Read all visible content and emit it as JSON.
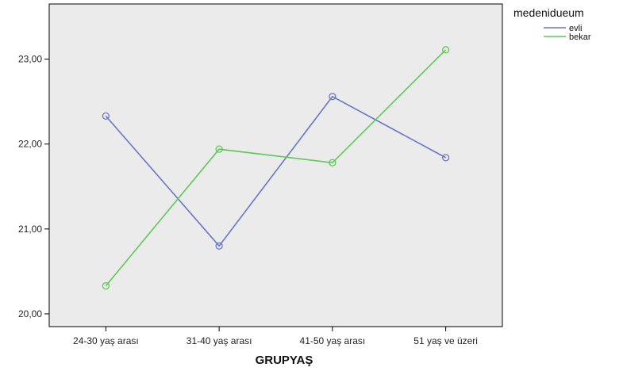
{
  "chart_data": {
    "type": "line",
    "categories": [
      "24-30 yaş arası",
      "31-40 yaş arası",
      "41-50 yaş arası",
      "51 yaş ve üzeri"
    ],
    "series": [
      {
        "name": "evli",
        "values": [
          22.33,
          20.8,
          22.56,
          21.84
        ],
        "color": "#6677c4"
      },
      {
        "name": "bekar",
        "values": [
          20.33,
          21.94,
          21.78,
          23.11
        ],
        "color": "#5ec956"
      }
    ],
    "xlabel": "GRUPYAŞ",
    "ylabel": "",
    "ylim": [
      19.85,
      23.65
    ],
    "yticks": [
      20,
      21,
      22,
      23
    ],
    "ytick_labels": [
      "20,00",
      "21,00",
      "22,00",
      "23,00"
    ],
    "legend_title": "medenidueum",
    "legend_position": "top-right",
    "plot_background": "#ebebeb",
    "marker": "open-circle",
    "grid": false
  }
}
